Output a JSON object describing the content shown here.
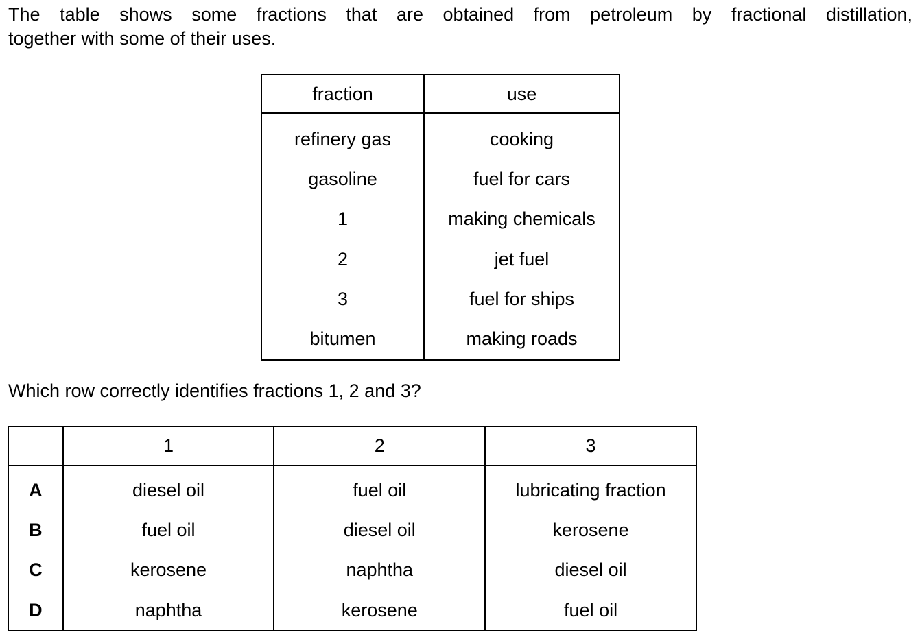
{
  "intro": {
    "line1": "The table shows some fractions that are obtained from petroleum by fractional distillation,",
    "line2": "together with some of their uses."
  },
  "uses_table": {
    "headers": [
      "fraction",
      "use"
    ],
    "rows": [
      [
        "refinery gas",
        "cooking"
      ],
      [
        "gasoline",
        "fuel for cars"
      ],
      [
        "1",
        "making chemicals"
      ],
      [
        "2",
        "jet fuel"
      ],
      [
        "3",
        "fuel for ships"
      ],
      [
        "bitumen",
        "making roads"
      ]
    ]
  },
  "question": "Which row correctly identifies fractions 1, 2 and 3?",
  "options_table": {
    "headers": [
      "",
      "1",
      "2",
      "3"
    ],
    "rows": [
      [
        "A",
        "diesel oil",
        "fuel oil",
        "lubricating fraction"
      ],
      [
        "B",
        "fuel oil",
        "diesel oil",
        "kerosene"
      ],
      [
        "C",
        "kerosene",
        "naphtha",
        "diesel oil"
      ],
      [
        "D",
        "naphtha",
        "kerosene",
        "fuel oil"
      ]
    ]
  }
}
